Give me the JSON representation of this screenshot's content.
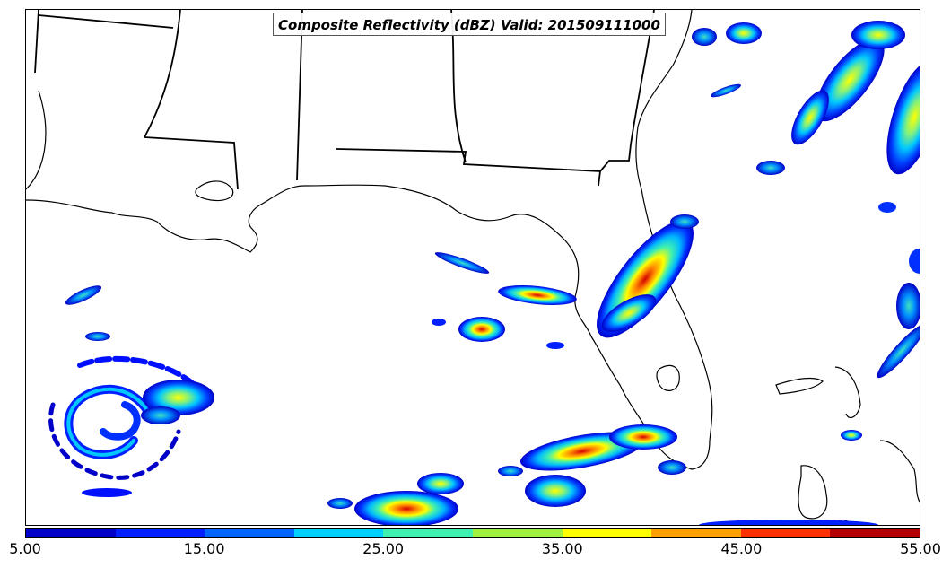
{
  "title": "Composite Reflectivity (dBZ) Valid: 201509111000",
  "field": "Composite Reflectivity",
  "units": "dBZ",
  "valid_time": "201509111000",
  "colorbar": {
    "min": 5.0,
    "max": 55.0,
    "ticks": [
      "5.00",
      "15.00",
      "25.00",
      "35.00",
      "45.00",
      "55.00"
    ],
    "colors": [
      "#0000c8",
      "#0020ff",
      "#0064ff",
      "#00d0ff",
      "#40f0b0",
      "#a0f040",
      "#ffff00",
      "#ffa000",
      "#ff3000",
      "#b40000"
    ]
  }
}
